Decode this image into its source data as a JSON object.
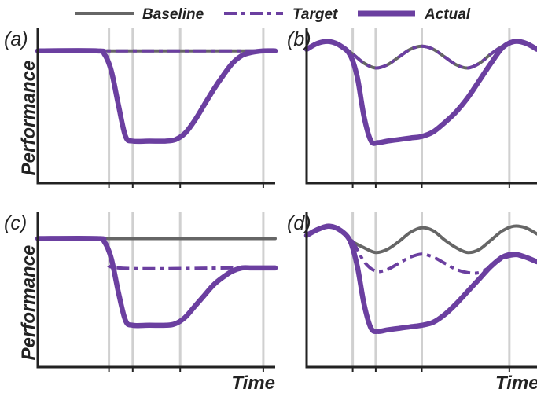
{
  "colors": {
    "baseline": "#666666",
    "target": "#6b3fa0",
    "actual": "#6b3fa0",
    "axis": "#222222",
    "vline": "#d0d0d0"
  },
  "legend": {
    "items": [
      {
        "key": "baseline",
        "label": "Baseline",
        "style": "solid-thin"
      },
      {
        "key": "target",
        "label": "Target",
        "style": "dashdot"
      },
      {
        "key": "actual",
        "label": "Actual",
        "style": "solid-thick"
      }
    ]
  },
  "chart_data": [
    {
      "panel": "(a)",
      "type": "line",
      "xlabel": "",
      "ylabel": "Performance",
      "xlim": [
        0,
        100
      ],
      "ylim": [
        0,
        100
      ],
      "vlines": [
        30,
        40,
        60,
        95
      ],
      "series": [
        {
          "name": "Baseline",
          "key": "baseline",
          "x": [
            0,
            100
          ],
          "y": [
            85,
            85
          ]
        },
        {
          "name": "Target",
          "key": "target",
          "x": [
            0,
            100
          ],
          "y": [
            85,
            85
          ]
        },
        {
          "name": "Actual",
          "key": "actual",
          "x": [
            0,
            25,
            28,
            31,
            34,
            37,
            40,
            47,
            54,
            58,
            62,
            66,
            70,
            74,
            78,
            82,
            86,
            90,
            95,
            100
          ],
          "y": [
            85,
            85,
            83,
            72,
            50,
            30,
            27,
            27,
            27,
            28,
            32,
            40,
            50,
            60,
            69,
            77,
            82,
            84,
            85,
            85
          ]
        }
      ]
    },
    {
      "panel": "(b)",
      "type": "line",
      "xlabel": "",
      "ylabel": "",
      "xlim": [
        0,
        100
      ],
      "ylim": [
        0,
        100
      ],
      "vlines": [
        20,
        30,
        50,
        88
      ],
      "series": [
        {
          "name": "Baseline",
          "key": "baseline",
          "x": [
            0,
            5,
            10,
            15,
            20,
            25,
            30,
            35,
            40,
            45,
            50,
            55,
            60,
            65,
            70,
            75,
            80,
            85,
            90,
            95,
            100
          ],
          "y": [
            86,
            90,
            91,
            88,
            83,
            77,
            74,
            76,
            81,
            86,
            88,
            86,
            81,
            76,
            74,
            77,
            83,
            88,
            91,
            90,
            86
          ]
        },
        {
          "name": "Target",
          "key": "target",
          "x": [
            0,
            5,
            10,
            15,
            20,
            25,
            30,
            35,
            40,
            45,
            50,
            55,
            60,
            65,
            70,
            75,
            80,
            85,
            90,
            95,
            100
          ],
          "y": [
            86,
            90,
            91,
            88,
            83,
            77,
            74,
            76,
            81,
            86,
            88,
            86,
            81,
            76,
            74,
            77,
            83,
            88,
            91,
            90,
            86
          ]
        },
        {
          "name": "Actual",
          "key": "actual",
          "x": [
            0,
            5,
            10,
            15,
            19,
            22,
            25,
            28,
            31,
            35,
            40,
            45,
            50,
            55,
            60,
            65,
            70,
            75,
            80,
            85,
            90,
            95,
            100
          ],
          "y": [
            86,
            90,
            91,
            88,
            82,
            68,
            42,
            27,
            26,
            27,
            28,
            29,
            30,
            33,
            39,
            46,
            55,
            66,
            77,
            87,
            91,
            90,
            86
          ]
        }
      ]
    },
    {
      "panel": "(c)",
      "type": "line",
      "xlabel": "Time",
      "ylabel": "Performance",
      "xlim": [
        0,
        100
      ],
      "ylim": [
        0,
        100
      ],
      "vlines": [
        30,
        40,
        60,
        95
      ],
      "series": [
        {
          "name": "Baseline",
          "key": "baseline",
          "x": [
            0,
            100
          ],
          "y": [
            83,
            83
          ]
        },
        {
          "name": "Target",
          "key": "target",
          "x": [
            0,
            25,
            28,
            31,
            34,
            80,
            85,
            90,
            95,
            100
          ],
          "y": [
            83,
            83,
            80,
            70,
            64,
            64,
            64,
            64,
            64,
            64
          ]
        },
        {
          "name": "Actual",
          "key": "actual",
          "x": [
            0,
            25,
            28,
            31,
            34,
            37,
            40,
            47,
            54,
            58,
            62,
            66,
            70,
            74,
            78,
            82,
            86,
            90,
            95,
            100
          ],
          "y": [
            83,
            83,
            81,
            70,
            48,
            30,
            27,
            27,
            27,
            28,
            32,
            39,
            46,
            53,
            58,
            62,
            64,
            64,
            64,
            64
          ]
        }
      ]
    },
    {
      "panel": "(d)",
      "type": "line",
      "xlabel": "Time",
      "ylabel": "",
      "xlim": [
        0,
        100
      ],
      "ylim": [
        0,
        100
      ],
      "vlines": [
        20,
        30,
        50,
        88
      ],
      "series": [
        {
          "name": "Baseline",
          "key": "baseline",
          "x": [
            0,
            5,
            10,
            15,
            20,
            25,
            30,
            35,
            40,
            45,
            50,
            55,
            60,
            65,
            70,
            75,
            80,
            85,
            90,
            95,
            100
          ],
          "y": [
            85,
            89,
            91,
            88,
            81,
            77,
            74,
            76,
            81,
            87,
            90,
            88,
            82,
            77,
            74,
            76,
            82,
            88,
            91,
            90,
            86
          ]
        },
        {
          "name": "Target",
          "key": "target",
          "x": [
            0,
            5,
            10,
            15,
            20,
            25,
            30,
            35,
            40,
            45,
            50,
            55,
            60,
            65,
            70,
            75,
            80,
            85,
            90,
            95,
            100
          ],
          "y": [
            85,
            89,
            91,
            88,
            81,
            68,
            62,
            63,
            67,
            71,
            73,
            71,
            67,
            63,
            61,
            61,
            65,
            70,
            72,
            71,
            68
          ]
        },
        {
          "name": "Actual",
          "key": "actual",
          "x": [
            0,
            5,
            10,
            15,
            19,
            22,
            25,
            28,
            31,
            35,
            40,
            45,
            50,
            55,
            60,
            65,
            70,
            75,
            80,
            85,
            90,
            95,
            100
          ],
          "y": [
            85,
            89,
            91,
            88,
            81,
            65,
            40,
            25,
            23,
            24,
            25,
            26,
            27,
            29,
            34,
            41,
            49,
            57,
            65,
            71,
            73,
            71,
            68
          ]
        }
      ]
    }
  ]
}
